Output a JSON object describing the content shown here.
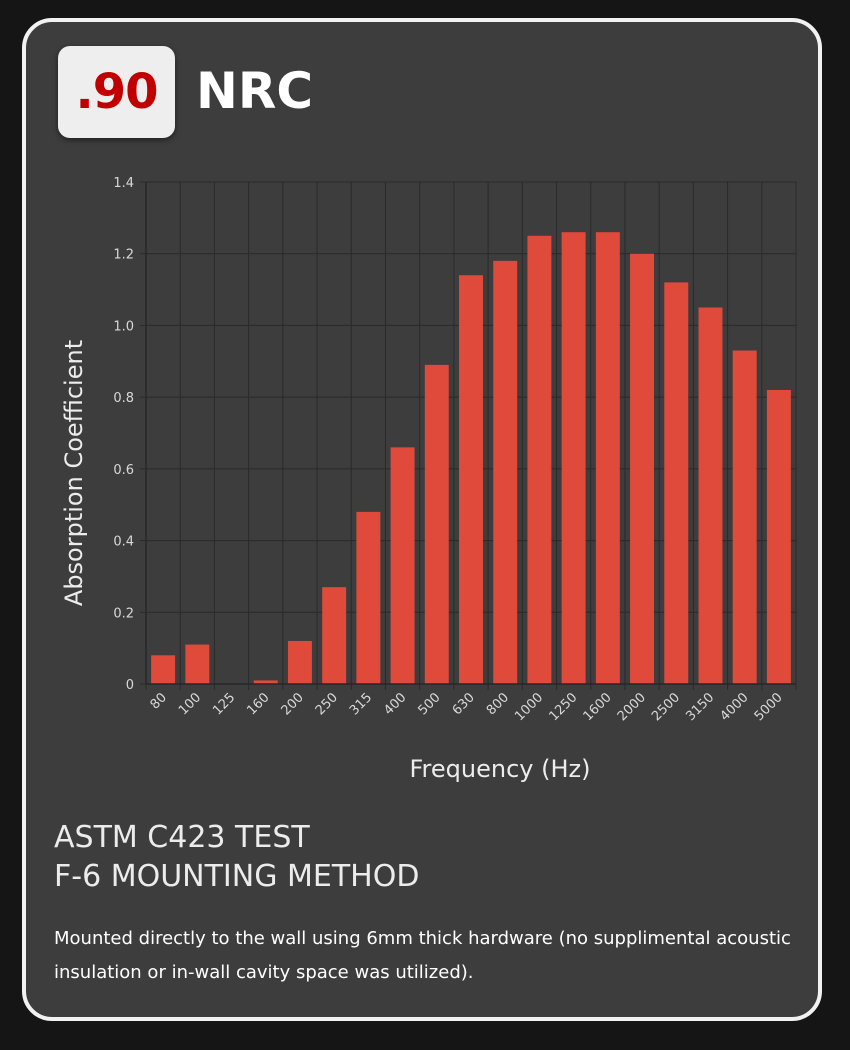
{
  "badge": {
    "value": ".90",
    "label": "NRC"
  },
  "chart_data": {
    "type": "bar",
    "xlabel": "Frequency (Hz)",
    "ylabel": "Absorption Coefficient",
    "ylim": [
      0,
      1.4
    ],
    "yticks": [
      "0",
      "0.2",
      "0.4",
      "0.6",
      "0.8",
      "1.0",
      "1.2",
      "1.4"
    ],
    "grid": true,
    "bar_color": "#e04a3b",
    "categories": [
      "80",
      "100",
      "125",
      "160",
      "200",
      "250",
      "315",
      "400",
      "500",
      "630",
      "800",
      "1000",
      "1250",
      "1600",
      "2000",
      "2500",
      "3150",
      "4000",
      "5000"
    ],
    "values": [
      0.08,
      0.11,
      0.0,
      0.01,
      0.12,
      0.27,
      0.48,
      0.66,
      0.89,
      1.14,
      1.18,
      1.25,
      1.26,
      1.26,
      1.2,
      1.12,
      1.05,
      0.93,
      0.82
    ]
  },
  "test": {
    "title_line1": "ASTM C423 TEST",
    "title_line2": "F-6 MOUNTING METHOD",
    "description": "Mounted directly to the wall using 6mm thick hardware (no supplimental acoustic insulation or in-wall cavity space was utilized)."
  }
}
